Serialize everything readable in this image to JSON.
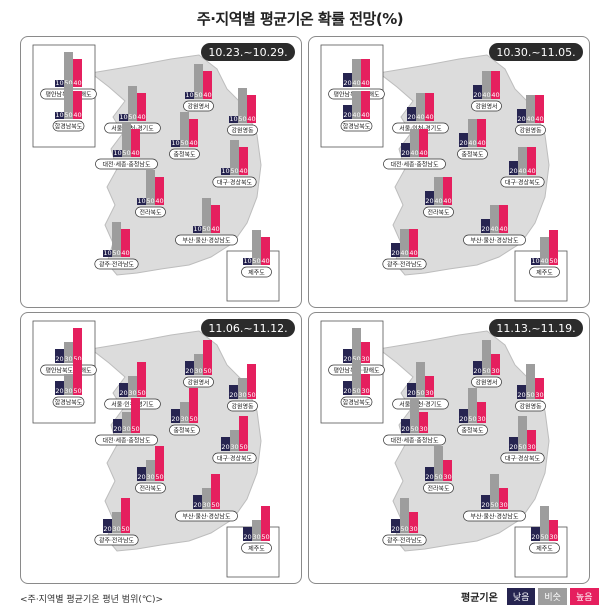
{
  "title": "주·지역별 평균기온 확률 전망(%)",
  "footnote": "<주·지역별 평균기온 평년 범위(℃)>",
  "legend": {
    "title": "평균기온",
    "low": "낮음",
    "normal": "비슷",
    "high": "높음"
  },
  "colors": {
    "low": "#262450",
    "normal": "#9d9d9d",
    "high": "#e51f5e",
    "map": "#dcdcdc"
  },
  "chart_data": [
    {
      "type": "bar",
      "period": "10.23.~10.29.",
      "categories": [
        "평안남북도·황해도",
        "함경남북도",
        "서울·인천·경기도",
        "강원영서",
        "강원영동",
        "대전·세종·충청남도",
        "충청북도",
        "대구·경상북도",
        "전라북도",
        "부산·울산·경상남도",
        "광주·전라남도",
        "제주도"
      ],
      "series": [
        {
          "name": "낮음",
          "values": [
            10,
            10,
            10,
            10,
            10,
            10,
            10,
            10,
            10,
            10,
            10,
            10
          ]
        },
        {
          "name": "비슷",
          "values": [
            50,
            50,
            50,
            50,
            50,
            50,
            50,
            50,
            50,
            50,
            50,
            50
          ]
        },
        {
          "name": "높음",
          "values": [
            40,
            40,
            40,
            40,
            40,
            40,
            40,
            40,
            40,
            40,
            40,
            40
          ]
        }
      ],
      "ylim": [
        0,
        60
      ]
    },
    {
      "type": "bar",
      "period": "10.30.~11.05.",
      "categories": [
        "평안남북도·황해도",
        "함경남북도",
        "서울·인천·경기도",
        "강원영서",
        "강원영동",
        "대전·세종·충청남도",
        "충청북도",
        "대구·경상북도",
        "전라북도",
        "부산·울산·경상남도",
        "광주·전라남도",
        "제주도"
      ],
      "series": [
        {
          "name": "낮음",
          "values": [
            20,
            20,
            20,
            20,
            20,
            20,
            20,
            20,
            20,
            20,
            20,
            10
          ]
        },
        {
          "name": "비슷",
          "values": [
            40,
            40,
            40,
            40,
            40,
            40,
            40,
            40,
            40,
            40,
            40,
            40
          ]
        },
        {
          "name": "높음",
          "values": [
            40,
            40,
            40,
            40,
            40,
            40,
            40,
            40,
            40,
            40,
            40,
            50
          ]
        }
      ],
      "ylim": [
        0,
        60
      ]
    },
    {
      "type": "bar",
      "period": "11.06.~11.12.",
      "categories": [
        "평안남북도·황해도",
        "함경남북도",
        "서울·인천·경기도",
        "강원영서",
        "강원영동",
        "대전·세종·충청남도",
        "충청북도",
        "대구·경상북도",
        "전라북도",
        "부산·울산·경상남도",
        "광주·전라남도",
        "제주도"
      ],
      "series": [
        {
          "name": "낮음",
          "values": [
            20,
            20,
            20,
            20,
            20,
            20,
            20,
            20,
            20,
            20,
            20,
            20
          ]
        },
        {
          "name": "비슷",
          "values": [
            30,
            30,
            30,
            30,
            30,
            30,
            30,
            30,
            30,
            30,
            30,
            30
          ]
        },
        {
          "name": "높음",
          "values": [
            50,
            50,
            50,
            50,
            50,
            50,
            50,
            50,
            50,
            50,
            50,
            50
          ]
        }
      ],
      "ylim": [
        0,
        60
      ]
    },
    {
      "type": "bar",
      "period": "11.13.~11.19.",
      "categories": [
        "평안남북도·황해도",
        "함경남북도",
        "서울·인천·경기도",
        "강원영서",
        "강원영동",
        "대전·세종·충청남도",
        "충청북도",
        "대구·경상북도",
        "전라북도",
        "부산·울산·경상남도",
        "광주·전라남도",
        "제주도"
      ],
      "series": [
        {
          "name": "낮음",
          "values": [
            20,
            20,
            20,
            20,
            20,
            20,
            20,
            20,
            20,
            20,
            20,
            20
          ]
        },
        {
          "name": "비슷",
          "values": [
            50,
            50,
            50,
            50,
            50,
            50,
            50,
            50,
            50,
            50,
            50,
            50
          ]
        },
        {
          "name": "높음",
          "values": [
            30,
            30,
            30,
            30,
            30,
            30,
            30,
            30,
            30,
            30,
            30,
            30
          ]
        }
      ],
      "ylim": [
        0,
        60
      ]
    }
  ]
}
